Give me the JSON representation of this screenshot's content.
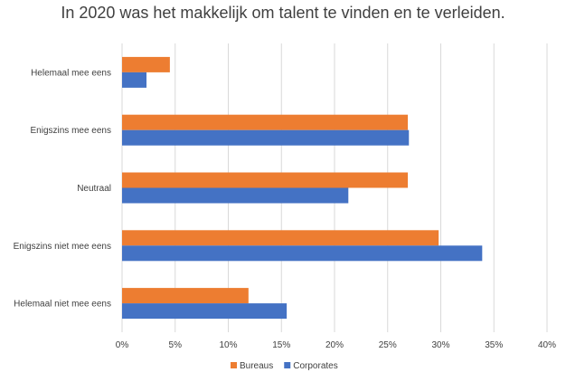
{
  "chart_data": {
    "type": "bar",
    "orientation": "horizontal",
    "title": "In 2020 was het makkelijk om talent te vinden en te verleiden.",
    "categories": [
      "Helemaal mee eens",
      "Enigszins mee eens",
      "Neutraal",
      "Enigszins niet mee eens",
      "Helemaal niet mee eens"
    ],
    "series": [
      {
        "name": "Bureaus",
        "color": "#ED7D31",
        "values": [
          4.5,
          26.9,
          26.9,
          29.8,
          11.9
        ]
      },
      {
        "name": "Corporates",
        "color": "#4472C4",
        "values": [
          2.3,
          27.0,
          21.3,
          33.9,
          15.5
        ]
      }
    ],
    "xlim": [
      0,
      40
    ],
    "ticks": [
      "0%",
      "5%",
      "10%",
      "15%",
      "20%",
      "25%",
      "30%",
      "35%",
      "40%"
    ],
    "grid": true,
    "legend": "bottom"
  }
}
